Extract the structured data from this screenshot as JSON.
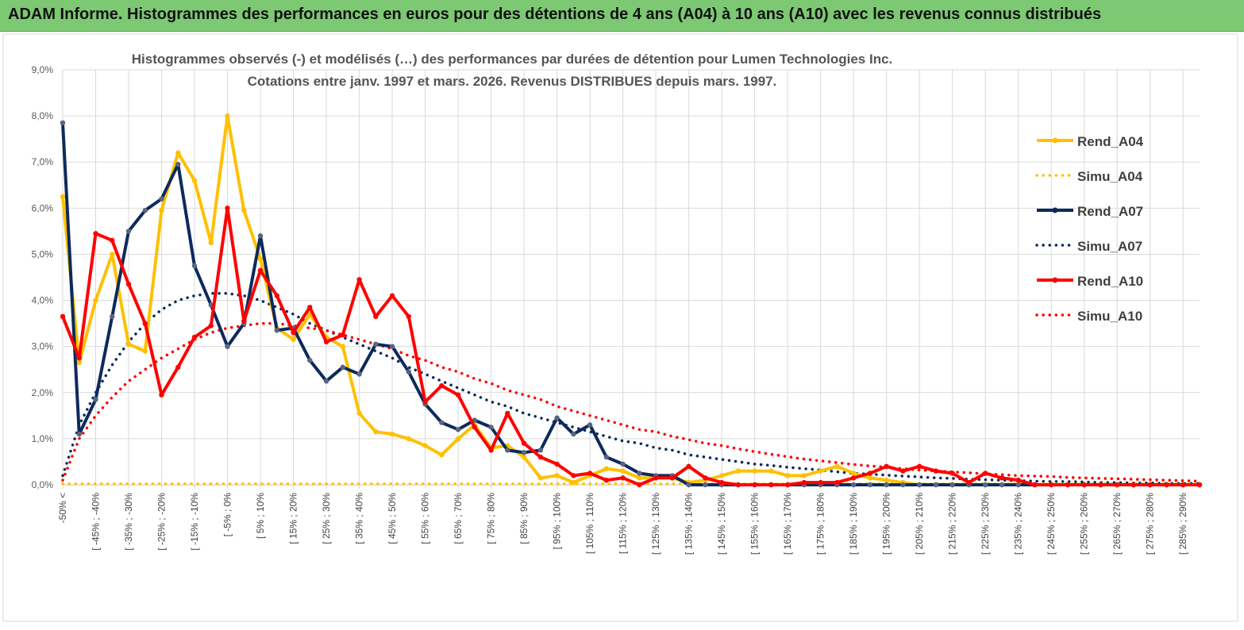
{
  "banner_title": "ADAM Informe. Histogrammes des performances en euros pour des détentions de 4 ans (A04) à 10 ans (A10) avec les revenus connus distribués",
  "colors": {
    "banner_bg": "#7dc873",
    "A04": "#ffc000",
    "A07": "#0d2a5c",
    "A10": "#ff0000",
    "grid": "#d9d9d9"
  },
  "chart_data": {
    "type": "line",
    "title": "Histogrammes observés (-)  et modélisés (…) des performances par durées de détention pour Lumen Technologies Inc.",
    "subtitle": "Cotations entre janv. 1997 et mars. 2026. Revenus DISTRIBUES depuis mars. 1997.",
    "ylim": [
      0,
      9
    ],
    "yticks": [
      "0,0%",
      "1,0%",
      "2,0%",
      "3,0%",
      "4,0%",
      "5,0%",
      "6,0%",
      "7,0%",
      "8,0%",
      "9,0%"
    ],
    "xlabels": [
      "-50% <",
      "[ -45% ; -40%",
      "[ -35% ; -30%",
      "[ -25% ; -20%",
      "[ -15% ; -10%",
      "[ -5% ; 0%",
      "[ 5% ; 10%",
      "[ 15% ; 20%",
      "[ 25% ; 30%",
      "[ 35% ; 40%",
      "[ 45% ; 50%",
      "[ 55% ; 60%",
      "[ 65% ; 70%",
      "[ 75% ; 80%",
      "[ 85% ; 90%",
      "[ 95% ; 100%",
      "[ 105% ; 110%",
      "[ 115% ; 120%",
      "[ 125% ; 130%",
      "[ 135% ; 140%",
      "[ 145% ; 150%",
      "[ 155% ; 160%",
      "[ 165% ; 170%",
      "[ 175% ; 180%",
      "[ 185% ; 190%",
      "[ 195% ; 200%",
      "[ 205% ; 210%",
      "[ 215% ; 220%",
      "[ 225% ; 230%",
      "[ 235% ; 240%",
      "[ 245% ; 250%",
      "[ 255% ; 260%",
      "[ 265% ; 270%",
      "[ 275% ; 280%",
      "[ 285% ; 290%"
    ],
    "n_categories": 70,
    "legend_position": "right",
    "series": [
      {
        "name": "Rend_A04",
        "style": "solid",
        "color": "#ffc000",
        "values": [
          6.25,
          2.65,
          4.0,
          5.0,
          3.05,
          2.9,
          5.95,
          7.2,
          6.6,
          5.25,
          8.0,
          5.95,
          4.9,
          3.4,
          3.15,
          3.7,
          3.2,
          3.0,
          1.55,
          1.15,
          1.1,
          1.0,
          0.85,
          0.65,
          1.0,
          1.3,
          0.8,
          0.85,
          0.6,
          0.15,
          0.2,
          0.05,
          0.2,
          0.35,
          0.3,
          0.15,
          0.15,
          0.15,
          0.05,
          0.1,
          0.2,
          0.3,
          0.3,
          0.3,
          0.2,
          0.2,
          0.3,
          0.4,
          0.25,
          0.15,
          0.1,
          0.05,
          0.0,
          0.0,
          0.0,
          0.0,
          0.0,
          0.0,
          0.0,
          0.0,
          0.0,
          0.0,
          0.0,
          0.0,
          0.0,
          0.0,
          0.0,
          0.0,
          0.0,
          0.0
        ]
      },
      {
        "name": "Simu_A04",
        "style": "dotted",
        "color": "#ffc000",
        "values": [
          0.02,
          0.02,
          0.02,
          0.02,
          0.02,
          0.02,
          0.02,
          0.02,
          0.02,
          0.02,
          0.02,
          0.02,
          0.02,
          0.02,
          0.02,
          0.02,
          0.02,
          0.02,
          0.02,
          0.02,
          0.02,
          0.02,
          0.02,
          0.02,
          0.02,
          0.02,
          0.02,
          0.02,
          0.02,
          0.02,
          0.02,
          0.02,
          0.02,
          0.02,
          0.02,
          0.02,
          0.02,
          0.02,
          0.02,
          0.02,
          0.02,
          0.02,
          0.02,
          0.02,
          0.02,
          0.02,
          0.02,
          0.02,
          0.02,
          0.02,
          0.02,
          0.02,
          0.02,
          0.02,
          0.02,
          0.02,
          0.02,
          0.02,
          0.02,
          0.02,
          0.02,
          0.02,
          0.02,
          0.02,
          0.02,
          0.02,
          0.02,
          0.02,
          0.02,
          0.02
        ]
      },
      {
        "name": "Rend_A07",
        "style": "solid",
        "color": "#0d2a5c",
        "values": [
          7.85,
          1.1,
          1.85,
          3.65,
          5.5,
          5.95,
          6.2,
          6.95,
          4.75,
          3.9,
          3.0,
          3.5,
          5.4,
          3.35,
          3.4,
          2.7,
          2.25,
          2.55,
          2.4,
          3.05,
          3.0,
          2.45,
          1.75,
          1.35,
          1.2,
          1.4,
          1.25,
          0.75,
          0.7,
          0.75,
          1.45,
          1.1,
          1.3,
          0.6,
          0.45,
          0.25,
          0.2,
          0.2,
          0.0,
          0.0,
          0.0,
          0.0,
          0.0,
          0.0,
          0.0,
          0.0,
          0.0,
          0.0,
          0.0,
          0.0,
          0.0,
          0.0,
          0.0,
          0.0,
          0.0,
          0.0,
          0.0,
          0.0,
          0.0,
          0.0,
          0.0,
          0.0,
          0.0,
          0.0,
          0.0,
          0.0,
          0.0,
          0.0,
          0.0,
          0.0
        ]
      },
      {
        "name": "Simu_A07",
        "style": "dotted",
        "color": "#0d2a5c",
        "values": [
          0.2,
          1.3,
          2.0,
          2.6,
          3.1,
          3.5,
          3.8,
          4.0,
          4.1,
          4.15,
          4.15,
          4.1,
          4.0,
          3.85,
          3.7,
          3.5,
          3.35,
          3.2,
          3.05,
          2.9,
          2.75,
          2.55,
          2.4,
          2.25,
          2.1,
          1.95,
          1.8,
          1.7,
          1.55,
          1.45,
          1.35,
          1.25,
          1.15,
          1.05,
          0.95,
          0.9,
          0.8,
          0.75,
          0.65,
          0.6,
          0.55,
          0.5,
          0.45,
          0.42,
          0.38,
          0.35,
          0.32,
          0.28,
          0.25,
          0.23,
          0.21,
          0.19,
          0.17,
          0.15,
          0.14,
          0.12,
          0.11,
          0.1,
          0.09,
          0.08,
          0.07,
          0.07,
          0.06,
          0.05,
          0.05,
          0.04,
          0.04,
          0.03,
          0.03,
          0.03
        ]
      },
      {
        "name": "Rend_A10",
        "style": "solid",
        "color": "#ff0000",
        "values": [
          3.65,
          2.75,
          5.45,
          5.3,
          4.35,
          3.5,
          1.95,
          2.55,
          3.2,
          3.45,
          6.0,
          3.55,
          4.65,
          4.1,
          3.3,
          3.85,
          3.1,
          3.25,
          4.45,
          3.65,
          4.1,
          3.65,
          1.8,
          2.15,
          1.95,
          1.25,
          0.75,
          1.55,
          0.9,
          0.6,
          0.45,
          0.2,
          0.25,
          0.1,
          0.15,
          0.0,
          0.15,
          0.15,
          0.4,
          0.15,
          0.05,
          0.0,
          0.0,
          0.0,
          0.0,
          0.05,
          0.05,
          0.05,
          0.15,
          0.25,
          0.4,
          0.3,
          0.4,
          0.3,
          0.25,
          0.05,
          0.25,
          0.15,
          0.1,
          0.0,
          0.0,
          0.0,
          0.0,
          0.0,
          0.0,
          0.0,
          0.0,
          0.0,
          0.0,
          0.0
        ]
      },
      {
        "name": "Simu_A10",
        "style": "dotted",
        "color": "#ff0000",
        "values": [
          0.1,
          1.0,
          1.5,
          1.9,
          2.25,
          2.5,
          2.75,
          2.95,
          3.15,
          3.3,
          3.4,
          3.45,
          3.5,
          3.5,
          3.45,
          3.4,
          3.35,
          3.25,
          3.15,
          3.05,
          2.95,
          2.8,
          2.7,
          2.55,
          2.45,
          2.3,
          2.2,
          2.05,
          1.95,
          1.85,
          1.7,
          1.6,
          1.5,
          1.4,
          1.3,
          1.2,
          1.15,
          1.05,
          0.98,
          0.9,
          0.85,
          0.78,
          0.72,
          0.66,
          0.61,
          0.56,
          0.52,
          0.48,
          0.44,
          0.41,
          0.38,
          0.35,
          0.32,
          0.3,
          0.28,
          0.26,
          0.24,
          0.22,
          0.2,
          0.19,
          0.18,
          0.16,
          0.15,
          0.14,
          0.13,
          0.12,
          0.11,
          0.1,
          0.09,
          0.08
        ]
      }
    ]
  }
}
